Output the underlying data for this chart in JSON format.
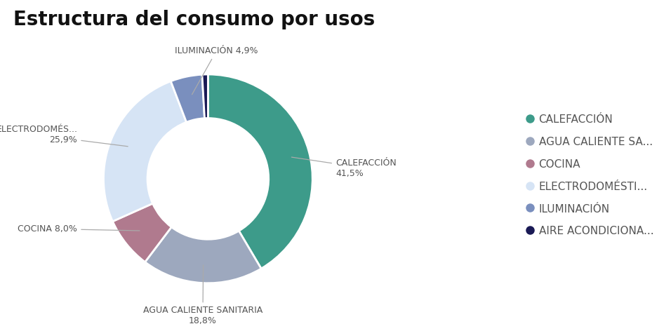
{
  "title": "Estructura del consumo por usos",
  "slices": [
    {
      "label": "CALEFACCIÓN",
      "value": 41.5,
      "color": "#3d9b8a",
      "legend": "CALEFACCIÓN"
    },
    {
      "label": "AGUA CALIENTE SANITARIA",
      "value": 18.8,
      "color": "#9da8be",
      "legend": "AGUA CALIENTE SA..."
    },
    {
      "label": "COCINA",
      "value": 8.0,
      "color": "#b07a8e",
      "legend": "COCINA"
    },
    {
      "label": "ELECTRODOMÉS...",
      "value": 25.9,
      "color": "#d6e4f5",
      "legend": "ELECTRODOMÉSTI..."
    },
    {
      "label": "ILUMINACIÓN",
      "value": 4.9,
      "color": "#7a8fbe",
      "legend": "ILUMINACIÓN"
    },
    {
      "label": "AIRE ACONDICIONA...",
      "value": 0.9,
      "color": "#1a1a55",
      "legend": "AIRE ACONDICIONA..."
    }
  ],
  "title_fontsize": 20,
  "label_fontsize": 9,
  "legend_fontsize": 11,
  "bg_color": "#ffffff",
  "text_color": "#555555"
}
